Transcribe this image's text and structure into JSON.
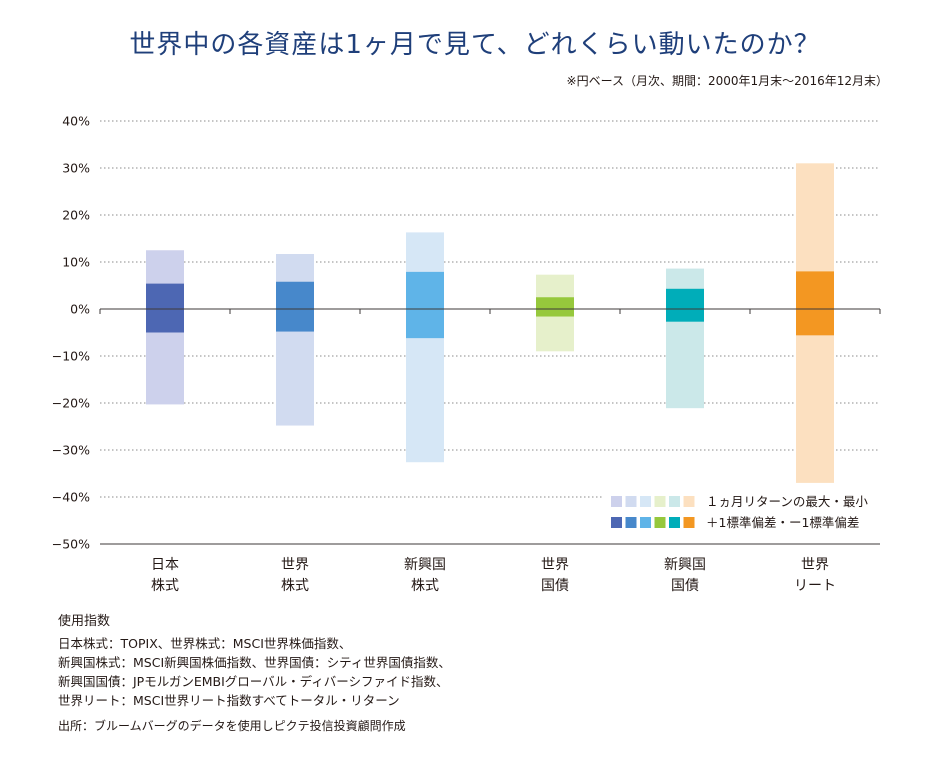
{
  "title": "世界中の各資産は1ヶ月で見て、どれくらい動いたのか？",
  "subtitle": "※円ベース（月次、期間：2000年1月末〜2016年12月末）",
  "chart_data": {
    "type": "floating-bar",
    "ylim": [
      -50,
      40
    ],
    "yticks": [
      40,
      30,
      20,
      10,
      0,
      -10,
      -20,
      -30,
      -40,
      -50
    ],
    "ytick_labels": [
      "40%",
      "30%",
      "20%",
      "10%",
      "0%",
      "−10%",
      "−20%",
      "−30%",
      "−40%",
      "−50%"
    ],
    "grid": true,
    "categories": [
      {
        "line1": "日本",
        "line2": "株式",
        "max": 12.5,
        "min": -20.3,
        "sd_high": 5.4,
        "sd_low": -5.0,
        "light": "#cdd1ec",
        "dark": "#4d67b3"
      },
      {
        "line1": "世界",
        "line2": "株式",
        "max": 11.7,
        "min": -24.8,
        "sd_high": 5.8,
        "sd_low": -4.8,
        "light": "#d1dbf0",
        "dark": "#4788cb"
      },
      {
        "line1": "新興国",
        "line2": "株式",
        "max": 16.3,
        "min": -32.6,
        "sd_high": 7.9,
        "sd_low": -6.2,
        "light": "#d6e7f6",
        "dark": "#5fb4e8"
      },
      {
        "line1": "世界",
        "line2": "国債",
        "max": 7.3,
        "min": -9.0,
        "sd_high": 2.5,
        "sd_low": -1.6,
        "light": "#e6f0cb",
        "dark": "#96c83c"
      },
      {
        "line1": "新興国",
        "line2": "国債",
        "max": 8.6,
        "min": -21.1,
        "sd_high": 4.3,
        "sd_low": -2.7,
        "light": "#cbe8e9",
        "dark": "#00adb9"
      },
      {
        "line1": "世界",
        "line2": "リート",
        "max": 31.0,
        "min": -37.0,
        "sd_high": 8.0,
        "sd_low": -5.6,
        "light": "#fce0c0",
        "dark": "#f39722"
      }
    ],
    "legend": {
      "position": "bottom-right",
      "range_label": "１ヵ月リターンの最大・最小",
      "sd_label": "＋1標準偏差・ー1標準偏差"
    }
  },
  "notes": {
    "heading": "使用指数",
    "lines": [
      "日本株式：TOPIX、世界株式：MSCI世界株価指数、",
      "新興国株式：MSCI新興国株価指数、世界国債：シティ世界国債指数、",
      "新興国国債：JPモルガンEMBIグローバル・ディバーシファイド指数、",
      "世界リート：MSCI世界リート指数すべてトータル・リターン"
    ]
  },
  "source": "出所：ブルームバーグのデータを使用しピクテ投信投資顧問作成"
}
